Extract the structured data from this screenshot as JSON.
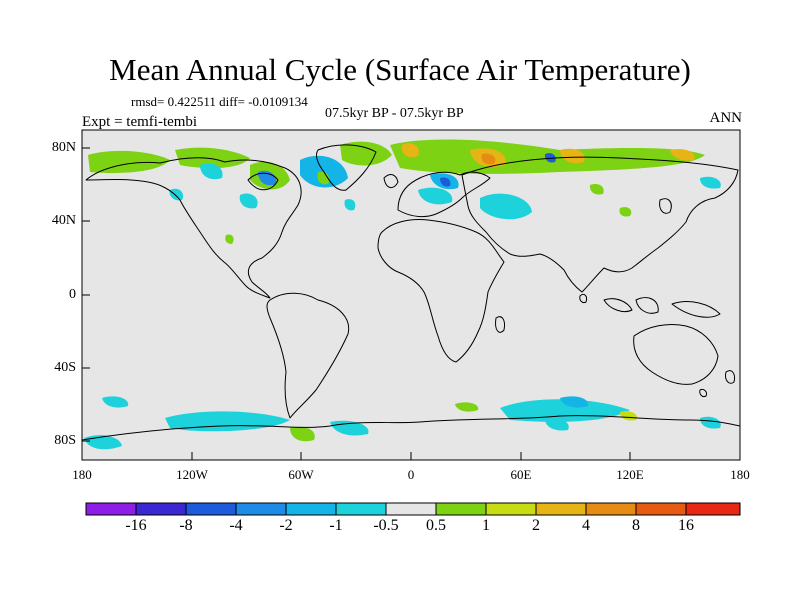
{
  "header": {
    "title": "Mean Annual Cycle (Surface Air Temperature)",
    "stats": "rmsd= 0.422511 diff= -0.0109134",
    "period": "07.5kyr BP - 07.5kyr BP",
    "experiment": "Expt = temfi-tembi",
    "season": "ANN"
  },
  "axes": {
    "y_labels": [
      "80N",
      "40N",
      "0",
      "40S",
      "80S"
    ],
    "x_labels": [
      "180",
      "120W",
      "60W",
      "0",
      "60E",
      "120E",
      "180"
    ]
  },
  "colorbar": {
    "labels": [
      "-16",
      "-8",
      "-4",
      "-2",
      "-1",
      "-0.5",
      "0.5",
      "1",
      "2",
      "4",
      "8",
      "16"
    ],
    "colors": [
      "#8c1ee6",
      "#3c28d2",
      "#1e5adc",
      "#1e8ce6",
      "#14b4e6",
      "#1ed2dc",
      "#e6e6e6",
      "#7dd214",
      "#c8dc14",
      "#e6b414",
      "#e68c14",
      "#e65a14",
      "#e62814"
    ]
  },
  "colors": {
    "background_field": "#e6e6e6",
    "frame": "#000000"
  }
}
